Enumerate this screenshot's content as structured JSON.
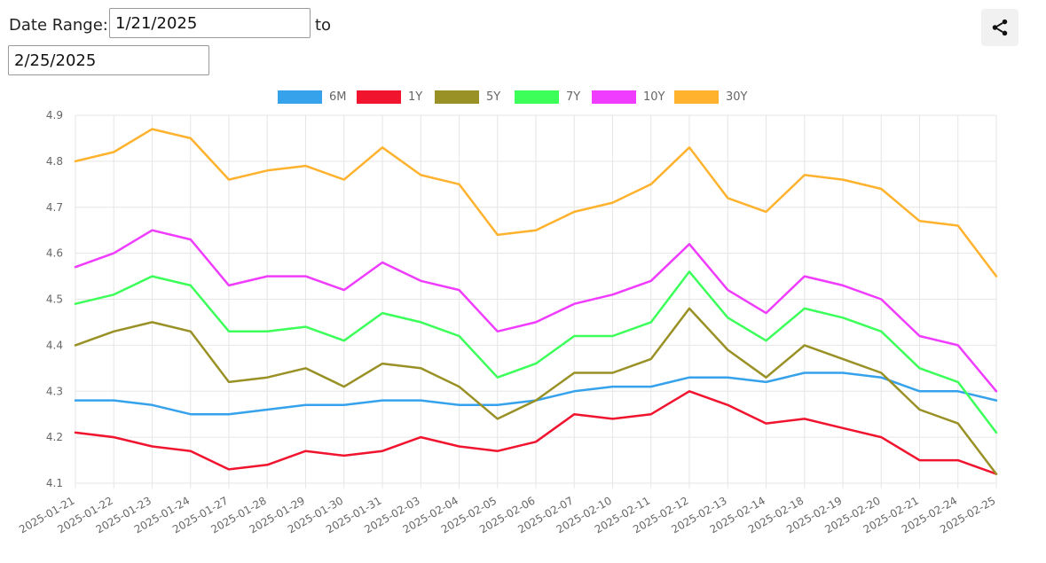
{
  "controls": {
    "date_range_label": "Date Range:",
    "start_date": "1/21/2025",
    "to_label": "to",
    "end_date": "2/25/2025"
  },
  "share_icon": "share-icon",
  "chart_data": {
    "type": "line",
    "title": "",
    "xlabel": "",
    "ylabel": "",
    "ylim": [
      4.1,
      4.9
    ],
    "yticks": [
      4.1,
      4.2,
      4.3,
      4.4,
      4.5,
      4.6,
      4.7,
      4.8,
      4.9
    ],
    "grid": true,
    "legend_position": "top-center",
    "categories": [
      "2025-01-21",
      "2025-01-22",
      "2025-01-23",
      "2025-01-24",
      "2025-01-27",
      "2025-01-28",
      "2025-01-29",
      "2025-01-30",
      "2025-01-31",
      "2025-02-03",
      "2025-02-04",
      "2025-02-05",
      "2025-02-06",
      "2025-02-07",
      "2025-02-10",
      "2025-02-11",
      "2025-02-12",
      "2025-02-13",
      "2025-02-14",
      "2025-02-18",
      "2025-02-19",
      "2025-02-20",
      "2025-02-21",
      "2025-02-24",
      "2025-02-25"
    ],
    "series": [
      {
        "name": "6M",
        "color": "#36a2eb",
        "values": [
          4.28,
          4.28,
          4.27,
          4.25,
          4.25,
          4.26,
          4.27,
          4.27,
          4.28,
          4.28,
          4.27,
          4.27,
          4.28,
          4.3,
          4.31,
          4.31,
          4.33,
          4.33,
          4.32,
          4.34,
          4.34,
          4.33,
          4.3,
          4.3,
          4.28
        ]
      },
      {
        "name": "1Y",
        "color": "#f0142f",
        "values": [
          4.21,
          4.2,
          4.18,
          4.17,
          4.13,
          4.14,
          4.17,
          4.16,
          4.17,
          4.2,
          4.18,
          4.17,
          4.19,
          4.25,
          4.24,
          4.25,
          4.3,
          4.27,
          4.23,
          4.24,
          4.22,
          4.2,
          4.15,
          4.15,
          4.12
        ]
      },
      {
        "name": "5Y",
        "color": "#999126",
        "values": [
          4.4,
          4.43,
          4.45,
          4.43,
          4.32,
          4.33,
          4.35,
          4.31,
          4.36,
          4.35,
          4.31,
          4.24,
          4.28,
          4.34,
          4.34,
          4.37,
          4.48,
          4.39,
          4.33,
          4.4,
          4.37,
          4.34,
          4.26,
          4.23,
          4.12
        ]
      },
      {
        "name": "7Y",
        "color": "#3cff5a",
        "values": [
          4.49,
          4.51,
          4.55,
          4.53,
          4.43,
          4.43,
          4.44,
          4.41,
          4.47,
          4.45,
          4.42,
          4.33,
          4.36,
          4.42,
          4.42,
          4.45,
          4.56,
          4.46,
          4.41,
          4.48,
          4.46,
          4.43,
          4.35,
          4.32,
          4.21
        ]
      },
      {
        "name": "10Y",
        "color": "#f03cff",
        "values": [
          4.57,
          4.6,
          4.65,
          4.63,
          4.53,
          4.55,
          4.55,
          4.52,
          4.58,
          4.54,
          4.52,
          4.43,
          4.45,
          4.49,
          4.51,
          4.54,
          4.62,
          4.52,
          4.47,
          4.55,
          4.53,
          4.5,
          4.42,
          4.4,
          4.3
        ]
      },
      {
        "name": "30Y",
        "color": "#ffb22e",
        "values": [
          4.8,
          4.82,
          4.87,
          4.85,
          4.76,
          4.78,
          4.79,
          4.76,
          4.83,
          4.77,
          4.75,
          4.64,
          4.65,
          4.69,
          4.71,
          4.75,
          4.83,
          4.72,
          4.69,
          4.77,
          4.76,
          4.74,
          4.67,
          4.66,
          4.55
        ]
      }
    ]
  }
}
